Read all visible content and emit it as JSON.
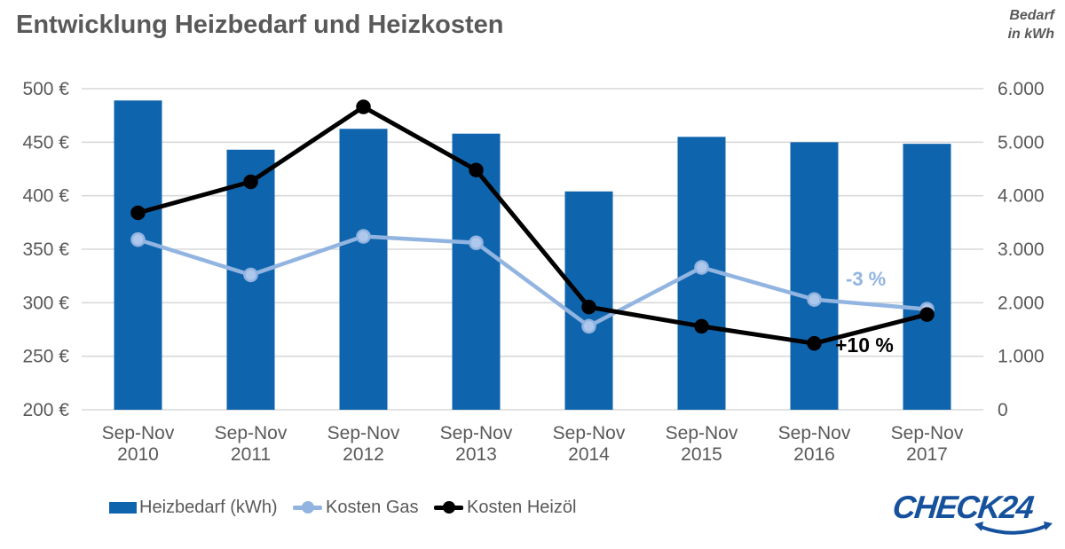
{
  "header": {
    "title": "Entwicklung Heizbedarf und Heizkosten",
    "right_axis_note": [
      "Bedarf",
      "in kWh"
    ]
  },
  "chart_data": {
    "type": "bar",
    "subtype": "bar-line combo, dual axis",
    "categories": [
      "Sep-Nov 2010",
      "Sep-Nov 2011",
      "Sep-Nov 2012",
      "Sep-Nov 2013",
      "Sep-Nov 2014",
      "Sep-Nov 2015",
      "Sep-Nov 2016",
      "Sep-Nov 2017"
    ],
    "series": [
      {
        "name": "Heizbedarf (kWh)",
        "type": "bar",
        "axis": "right",
        "unit": "kWh",
        "values": [
          5780,
          4860,
          5250,
          5160,
          4080,
          5100,
          5000,
          4970
        ]
      },
      {
        "name": "Kosten Gas",
        "type": "line",
        "axis": "left",
        "unit": "EUR",
        "values": [
          359,
          326,
          362,
          356,
          278,
          333,
          303,
          294
        ]
      },
      {
        "name": "Kosten Heizöl",
        "type": "line",
        "axis": "left",
        "unit": "EUR",
        "values": [
          384,
          413,
          483,
          424,
          296,
          278,
          262,
          289
        ]
      }
    ],
    "left_axis": {
      "min": 200,
      "max": 500,
      "ticks": [
        "500 €",
        "450 €",
        "400 €",
        "350 €",
        "300 €",
        "250 €",
        "200 €"
      ]
    },
    "right_axis": {
      "min": 0,
      "max": 6000,
      "ticks": [
        "6.000",
        "5.000",
        "4.000",
        "3.000",
        "2.000",
        "1.000",
        "0"
      ]
    },
    "grid": true,
    "legend_position": "bottom"
  },
  "annotations": {
    "gas": {
      "label": "-3 %",
      "color": "#92b4e1"
    },
    "oil": {
      "label": "+10 %",
      "color": "#000000"
    }
  },
  "style": {
    "bar_color": "#0f65ad",
    "gas_color": "#92b4e1",
    "gas_dot_fill": "#aec7ec",
    "oil_color": "#000000",
    "text_color": "#595959",
    "grid_color": "#d9d9d9"
  },
  "logo": {
    "text": "CHECK24",
    "color": "#16519e"
  }
}
